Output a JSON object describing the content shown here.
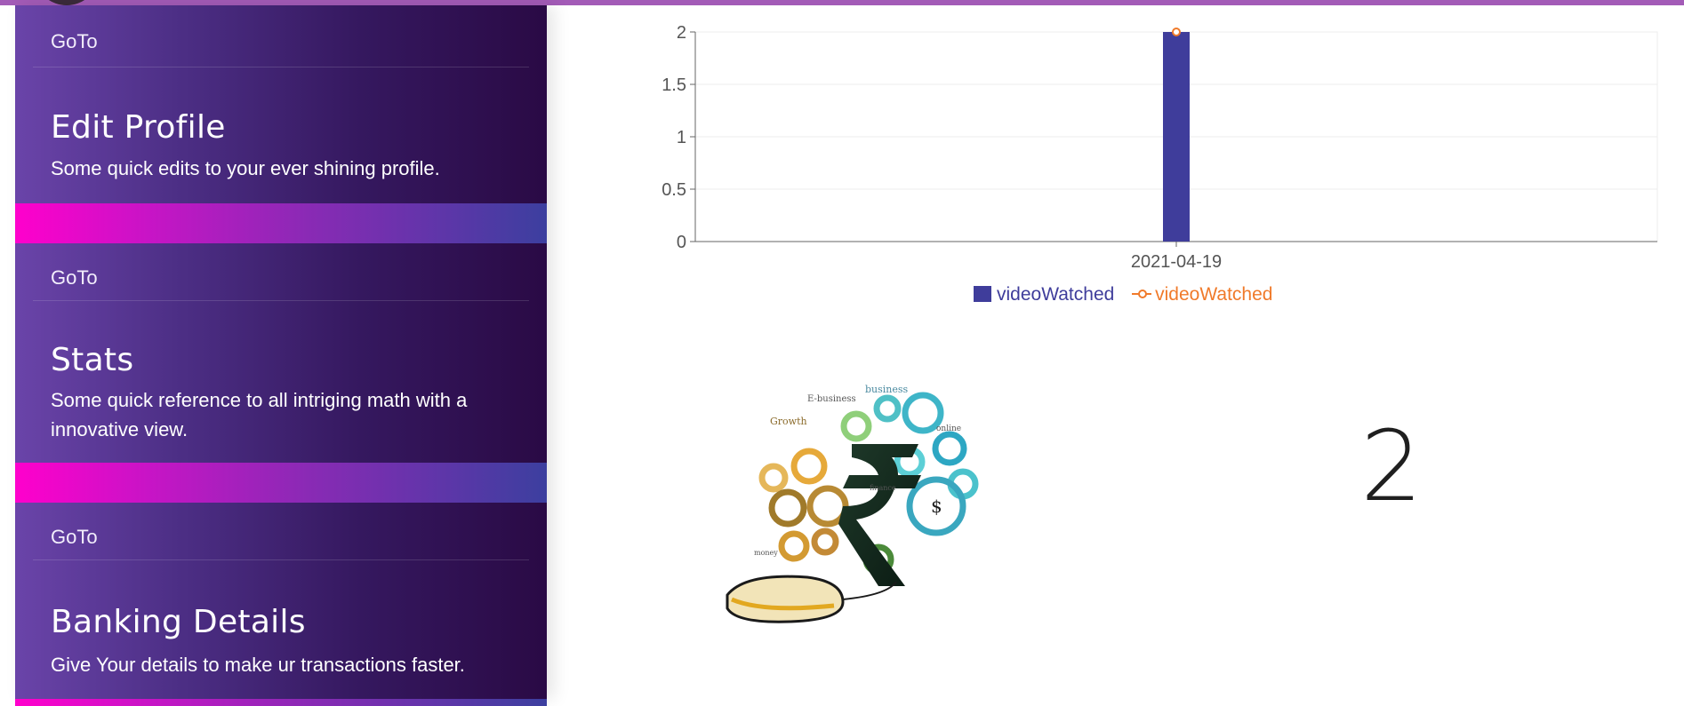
{
  "colors": {
    "accent_top": "#a35bb7",
    "card_gradient_start": "#6a44a9",
    "card_gradient_end": "#2a0a45",
    "separator_pink": "#ff00cc",
    "separator_blue": "#3c3f9f",
    "bar": "#3f3d9b",
    "line": "#f07a2a"
  },
  "sidebar": {
    "cards": [
      {
        "goto": "GoTo",
        "title": "Edit Profile",
        "description": "Some quick edits to your ever shining profile."
      },
      {
        "goto": "GoTo",
        "title": "Stats",
        "description": "Some quick reference to all intriging math with a innovative view."
      },
      {
        "goto": "GoTo",
        "title": "Banking Details",
        "description": "Give Your details to make ur transactions faster."
      }
    ]
  },
  "chart_data": {
    "type": "bar",
    "categories": [
      "2021-04-19"
    ],
    "series": [
      {
        "name": "videoWatched",
        "type": "bar",
        "color": "#3f3d9b",
        "values": [
          2
        ]
      },
      {
        "name": "videoWatched",
        "type": "line",
        "color": "#f07a2a",
        "values": [
          2
        ]
      }
    ],
    "yticks": [
      "0",
      "0.5",
      "1",
      "1.5",
      "2"
    ],
    "ylim": [
      0,
      2
    ],
    "grid": true,
    "legend": "bottom-center",
    "title": "",
    "xlabel": "",
    "ylabel": ""
  },
  "main": {
    "image_icon": "rupee-gears-mouse-illustration",
    "stat_value": "2"
  }
}
